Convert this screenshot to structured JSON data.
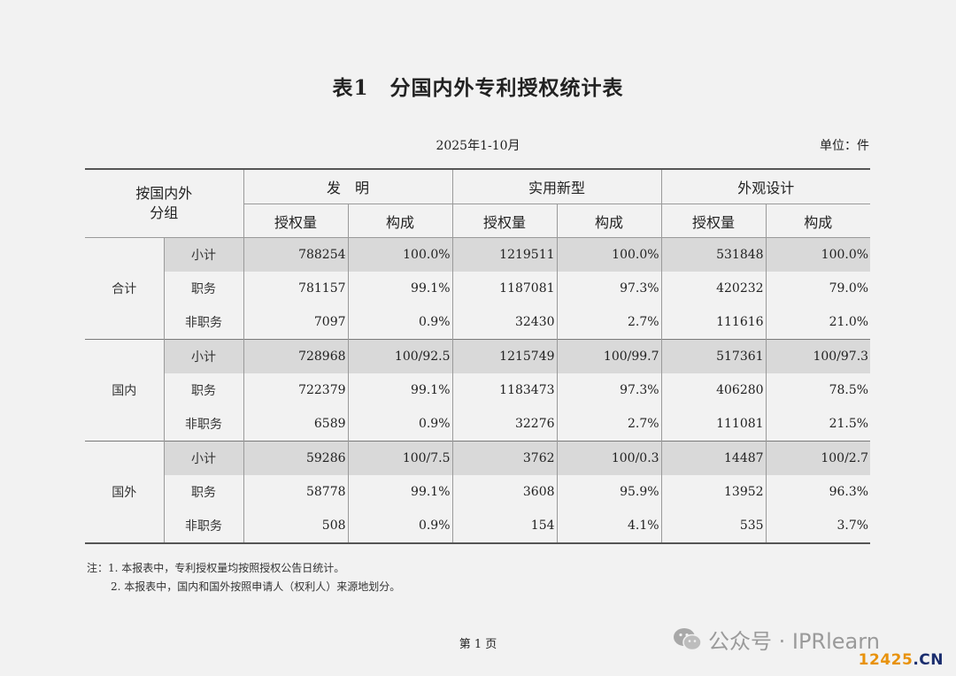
{
  "document": {
    "title": "表1　分国内外专利授权统计表",
    "date": "2025年1-10月",
    "unit": "单位：件",
    "page": "第 1 页"
  },
  "header": {
    "group": "按国内外\n分组",
    "categories": [
      "发　明",
      "实用新型",
      "外观设计"
    ],
    "sub": [
      "授权量",
      "构成"
    ]
  },
  "sections": [
    {
      "name": "合计",
      "rows": [
        {
          "label": "小计",
          "inv_qty": "788254",
          "inv_pct": "100.0%",
          "util_qty": "1219511",
          "util_pct": "100.0%",
          "des_qty": "531848",
          "des_pct": "100.0%"
        },
        {
          "label": "职务",
          "inv_qty": "781157",
          "inv_pct": "99.1%",
          "util_qty": "1187081",
          "util_pct": "97.3%",
          "des_qty": "420232",
          "des_pct": "79.0%"
        },
        {
          "label": "非职务",
          "inv_qty": "7097",
          "inv_pct": "0.9%",
          "util_qty": "32430",
          "util_pct": "2.7%",
          "des_qty": "111616",
          "des_pct": "21.0%"
        }
      ]
    },
    {
      "name": "国内",
      "rows": [
        {
          "label": "小计",
          "inv_qty": "728968",
          "inv_pct": "100/92.5",
          "util_qty": "1215749",
          "util_pct": "100/99.7",
          "des_qty": "517361",
          "des_pct": "100/97.3"
        },
        {
          "label": "职务",
          "inv_qty": "722379",
          "inv_pct": "99.1%",
          "util_qty": "1183473",
          "util_pct": "97.3%",
          "des_qty": "406280",
          "des_pct": "78.5%"
        },
        {
          "label": "非职务",
          "inv_qty": "6589",
          "inv_pct": "0.9%",
          "util_qty": "32276",
          "util_pct": "2.7%",
          "des_qty": "111081",
          "des_pct": "21.5%"
        }
      ]
    },
    {
      "name": "国外",
      "rows": [
        {
          "label": "小计",
          "inv_qty": "59286",
          "inv_pct": "100/7.5",
          "util_qty": "3762",
          "util_pct": "100/0.3",
          "des_qty": "14487",
          "des_pct": "100/2.7"
        },
        {
          "label": "职务",
          "inv_qty": "58778",
          "inv_pct": "99.1%",
          "util_qty": "3608",
          "util_pct": "95.9%",
          "des_qty": "13952",
          "des_pct": "96.3%"
        },
        {
          "label": "非职务",
          "inv_qty": "508",
          "inv_pct": "0.9%",
          "util_qty": "154",
          "util_pct": "4.1%",
          "des_qty": "535",
          "des_pct": "3.7%"
        }
      ]
    }
  ],
  "notes": [
    "注：1. 本报表中，专利授权量均按照授权公告日统计。",
    "2. 本报表中，国内和国外按照申请人（权利人）来源地划分。"
  ],
  "watermark": {
    "icon": "wechat-icon",
    "text": "公众号 · IPRlearn",
    "site_a": "12425",
    "site_b": ".CN"
  },
  "colors": {
    "background": "#f2f2f2",
    "subtotal_shade": "#d9d9d9",
    "site_orange": "#e8920c",
    "site_navy": "#1a2d6e"
  }
}
